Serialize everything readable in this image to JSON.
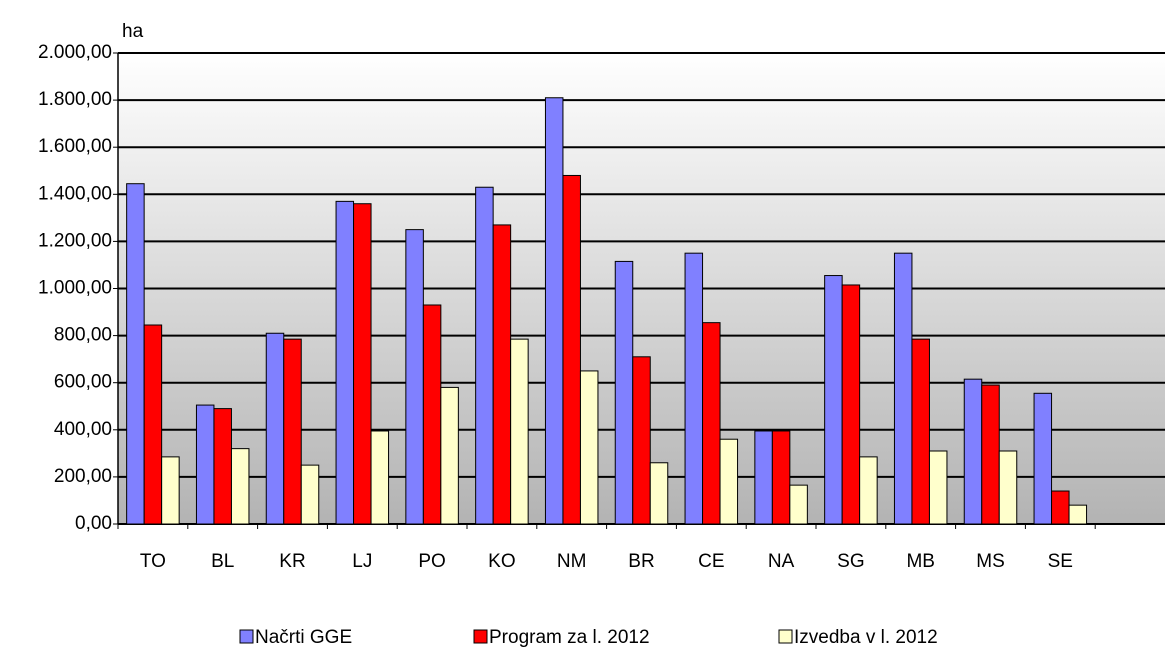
{
  "chart_data": {
    "type": "bar",
    "y_unit_label": "ha",
    "categories": [
      "TO",
      "BL",
      "KR",
      "LJ",
      "PO",
      "KO",
      "NM",
      "BR",
      "CE",
      "NA",
      "SG",
      "MB",
      "MS",
      "SE",
      null
    ],
    "series": [
      {
        "name": "Načrti GGE",
        "color": "#8080ff",
        "values": [
          1445,
          505,
          810,
          1370,
          1250,
          1430,
          1810,
          1115,
          1150,
          395,
          1055,
          1150,
          615,
          555,
          null
        ]
      },
      {
        "name": "Program za l. 2012",
        "color": "#ff0000",
        "values": [
          845,
          490,
          785,
          1360,
          930,
          1270,
          1480,
          710,
          855,
          395,
          1015,
          785,
          590,
          140,
          null
        ]
      },
      {
        "name": "Izvedba v l. 2012",
        "color": "#ffffcc",
        "values": [
          285,
          320,
          250,
          395,
          580,
          785,
          650,
          260,
          360,
          165,
          285,
          310,
          310,
          80,
          null
        ]
      }
    ],
    "ylim": [
      0,
      2000
    ],
    "yticks": [
      {
        "value": 0,
        "label": "0,00"
      },
      {
        "value": 200,
        "label": "200,00"
      },
      {
        "value": 400,
        "label": "400,00"
      },
      {
        "value": 600,
        "label": "600,00"
      },
      {
        "value": 800,
        "label": "800,00"
      },
      {
        "value": 1000,
        "label": "1.000,00"
      },
      {
        "value": 1200,
        "label": "1.200,00"
      },
      {
        "value": 1400,
        "label": "1.400,00"
      },
      {
        "value": 1600,
        "label": "1.600,00"
      },
      {
        "value": 1800,
        "label": "1.800,00"
      },
      {
        "value": 2000,
        "label": "2.000,00"
      }
    ],
    "grid": true,
    "legend": "bottom"
  }
}
